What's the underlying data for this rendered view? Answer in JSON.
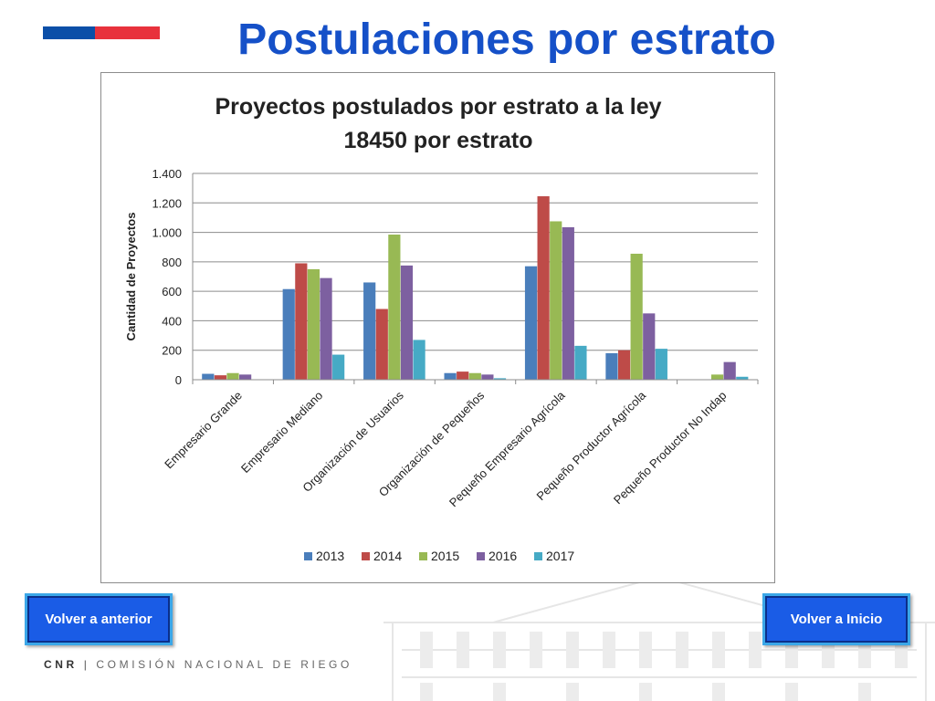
{
  "slide": {
    "title": "Postulaciones por estrato",
    "back_button": "Volver a anterior",
    "home_button": "Volver a Inicio",
    "footer_acronym": "CNR",
    "footer_separator": "|",
    "footer_org": "COMISIÓN NACIONAL DE RIEGO",
    "flag_colors": [
      "#0b4fa8",
      "#e8323c"
    ]
  },
  "chart_data": {
    "type": "bar",
    "title_lines": [
      "Proyectos postulados por estrato a la ley",
      "18450 por estrato"
    ],
    "ylabel": "Cantidad de Proyectos",
    "xlabel": "",
    "ylim": [
      0,
      1400
    ],
    "yticks": [
      0,
      200,
      400,
      600,
      800,
      1000,
      1200,
      1400
    ],
    "ytick_labels": [
      "0",
      "200",
      "400",
      "600",
      "800",
      "1.000",
      "1.200",
      "1.400"
    ],
    "grid": true,
    "legend_position": "bottom",
    "categories": [
      "Empresario Grande",
      "Empresario Mediano",
      "Organización de Usuarios",
      "Organización de Pequeños",
      "Pequeño Empresario Agrícola",
      "Pequeño Productor Agrícola",
      "Pequeño Productor No Indap"
    ],
    "series": [
      {
        "name": "2013",
        "color": "#4a7ebb",
        "values": [
          40,
          615,
          660,
          45,
          770,
          180,
          0
        ]
      },
      {
        "name": "2014",
        "color": "#be4b48",
        "values": [
          30,
          790,
          480,
          55,
          1245,
          200,
          0
        ]
      },
      {
        "name": "2015",
        "color": "#98b954",
        "values": [
          45,
          750,
          985,
          45,
          1075,
          855,
          35
        ]
      },
      {
        "name": "2016",
        "color": "#7d60a0",
        "values": [
          35,
          690,
          775,
          35,
          1035,
          450,
          120
        ]
      },
      {
        "name": "2017",
        "color": "#46aac5",
        "values": [
          0,
          170,
          270,
          10,
          230,
          210,
          20
        ]
      }
    ]
  }
}
